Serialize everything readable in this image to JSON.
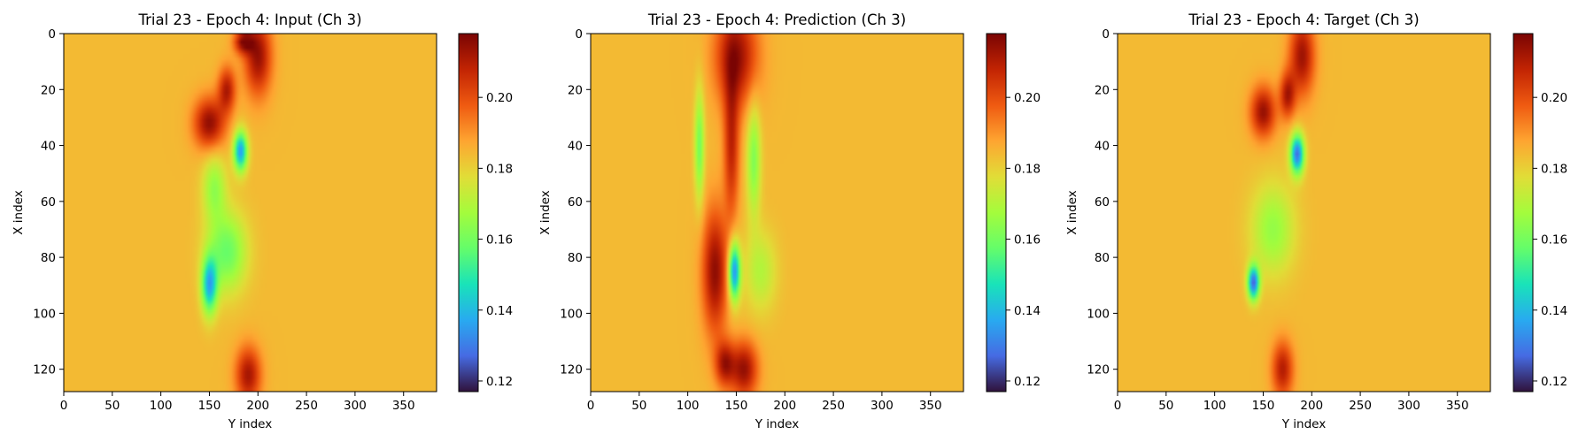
{
  "chart_data": [
    {
      "type": "heatmap",
      "title": "Trial 23 - Epoch 4: Input (Ch 3)",
      "xlabel": "Y index",
      "ylabel": "X index",
      "xticks": [
        0,
        50,
        100,
        150,
        200,
        250,
        300,
        350
      ],
      "yticks": [
        0,
        20,
        40,
        60,
        80,
        100,
        120
      ],
      "xlim": [
        0,
        384
      ],
      "ylim": [
        128,
        0
      ],
      "colormap": "turbo",
      "colorbar": {
        "range": [
          0.117,
          0.218
        ],
        "ticks": [
          "0.12",
          "0.14",
          "0.16",
          "0.18",
          "0.20"
        ]
      },
      "background_value": 0.184,
      "features": [
        {
          "y": 200,
          "x": 8,
          "sy": 14,
          "sx": 14,
          "v": 0.214
        },
        {
          "y": 185,
          "x": 3,
          "sy": 10,
          "sx": 4,
          "v": 0.212
        },
        {
          "y": 150,
          "x": 32,
          "sy": 16,
          "sx": 9,
          "v": 0.215
        },
        {
          "y": 168,
          "x": 20,
          "sy": 9,
          "sx": 8,
          "v": 0.21
        },
        {
          "y": 182,
          "x": 42,
          "sy": 7,
          "sx": 7,
          "v": 0.135
        },
        {
          "y": 155,
          "x": 55,
          "sy": 12,
          "sx": 12,
          "v": 0.165
        },
        {
          "y": 150,
          "x": 90,
          "sy": 8,
          "sx": 10,
          "v": 0.14
        },
        {
          "y": 168,
          "x": 78,
          "sy": 20,
          "sx": 14,
          "v": 0.158
        },
        {
          "y": 190,
          "x": 122,
          "sy": 13,
          "sx": 10,
          "v": 0.212
        }
      ]
    },
    {
      "type": "heatmap",
      "title": "Trial 23 - Epoch 4: Prediction (Ch 3)",
      "xlabel": "Y index",
      "ylabel": "X index",
      "xticks": [
        0,
        50,
        100,
        150,
        200,
        250,
        300,
        350
      ],
      "yticks": [
        0,
        20,
        40,
        60,
        80,
        100,
        120
      ],
      "xlim": [
        0,
        384
      ],
      "ylim": [
        128,
        0
      ],
      "colormap": "turbo",
      "colorbar": {
        "range": [
          0.117,
          0.218
        ],
        "ticks": [
          "0.12",
          "0.14",
          "0.16",
          "0.18",
          "0.20"
        ]
      },
      "background_value": 0.184,
      "features": [
        {
          "y": 150,
          "x": 8,
          "sy": 22,
          "sx": 18,
          "v": 0.214
        },
        {
          "y": 145,
          "x": 40,
          "sy": 8,
          "sx": 26,
          "v": 0.208
        },
        {
          "y": 128,
          "x": 85,
          "sy": 13,
          "sx": 22,
          "v": 0.215
        },
        {
          "y": 158,
          "x": 120,
          "sy": 14,
          "sx": 10,
          "v": 0.214
        },
        {
          "y": 138,
          "x": 118,
          "sy": 10,
          "sx": 8,
          "v": 0.21
        },
        {
          "y": 112,
          "x": 40,
          "sy": 5,
          "sx": 20,
          "v": 0.16
        },
        {
          "y": 168,
          "x": 45,
          "sy": 7,
          "sx": 20,
          "v": 0.162
        },
        {
          "y": 148,
          "x": 85,
          "sy": 6,
          "sx": 10,
          "v": 0.132
        },
        {
          "y": 175,
          "x": 85,
          "sy": 16,
          "sx": 14,
          "v": 0.17
        }
      ]
    },
    {
      "type": "heatmap",
      "title": "Trial 23 - Epoch 4: Target (Ch 3)",
      "xlabel": "Y index",
      "ylabel": "X index",
      "xticks": [
        0,
        50,
        100,
        150,
        200,
        250,
        300,
        350
      ],
      "yticks": [
        0,
        20,
        40,
        60,
        80,
        100,
        120
      ],
      "xlim": [
        0,
        384
      ],
      "ylim": [
        128,
        0
      ],
      "colormap": "turbo",
      "colorbar": {
        "range": [
          0.117,
          0.218
        ],
        "ticks": [
          "0.12",
          "0.14",
          "0.16",
          "0.18",
          "0.20"
        ]
      },
      "background_value": 0.184,
      "features": [
        {
          "y": 190,
          "x": 8,
          "sy": 13,
          "sx": 14,
          "v": 0.213
        },
        {
          "y": 150,
          "x": 28,
          "sy": 13,
          "sx": 9,
          "v": 0.214
        },
        {
          "y": 175,
          "x": 22,
          "sy": 8,
          "sx": 8,
          "v": 0.21
        },
        {
          "y": 185,
          "x": 43,
          "sy": 7,
          "sx": 7,
          "v": 0.128
        },
        {
          "y": 140,
          "x": 89,
          "sy": 6,
          "sx": 6,
          "v": 0.128
        },
        {
          "y": 160,
          "x": 70,
          "sy": 22,
          "sx": 16,
          "v": 0.165
        },
        {
          "y": 170,
          "x": 120,
          "sy": 11,
          "sx": 10,
          "v": 0.21
        }
      ]
    }
  ]
}
